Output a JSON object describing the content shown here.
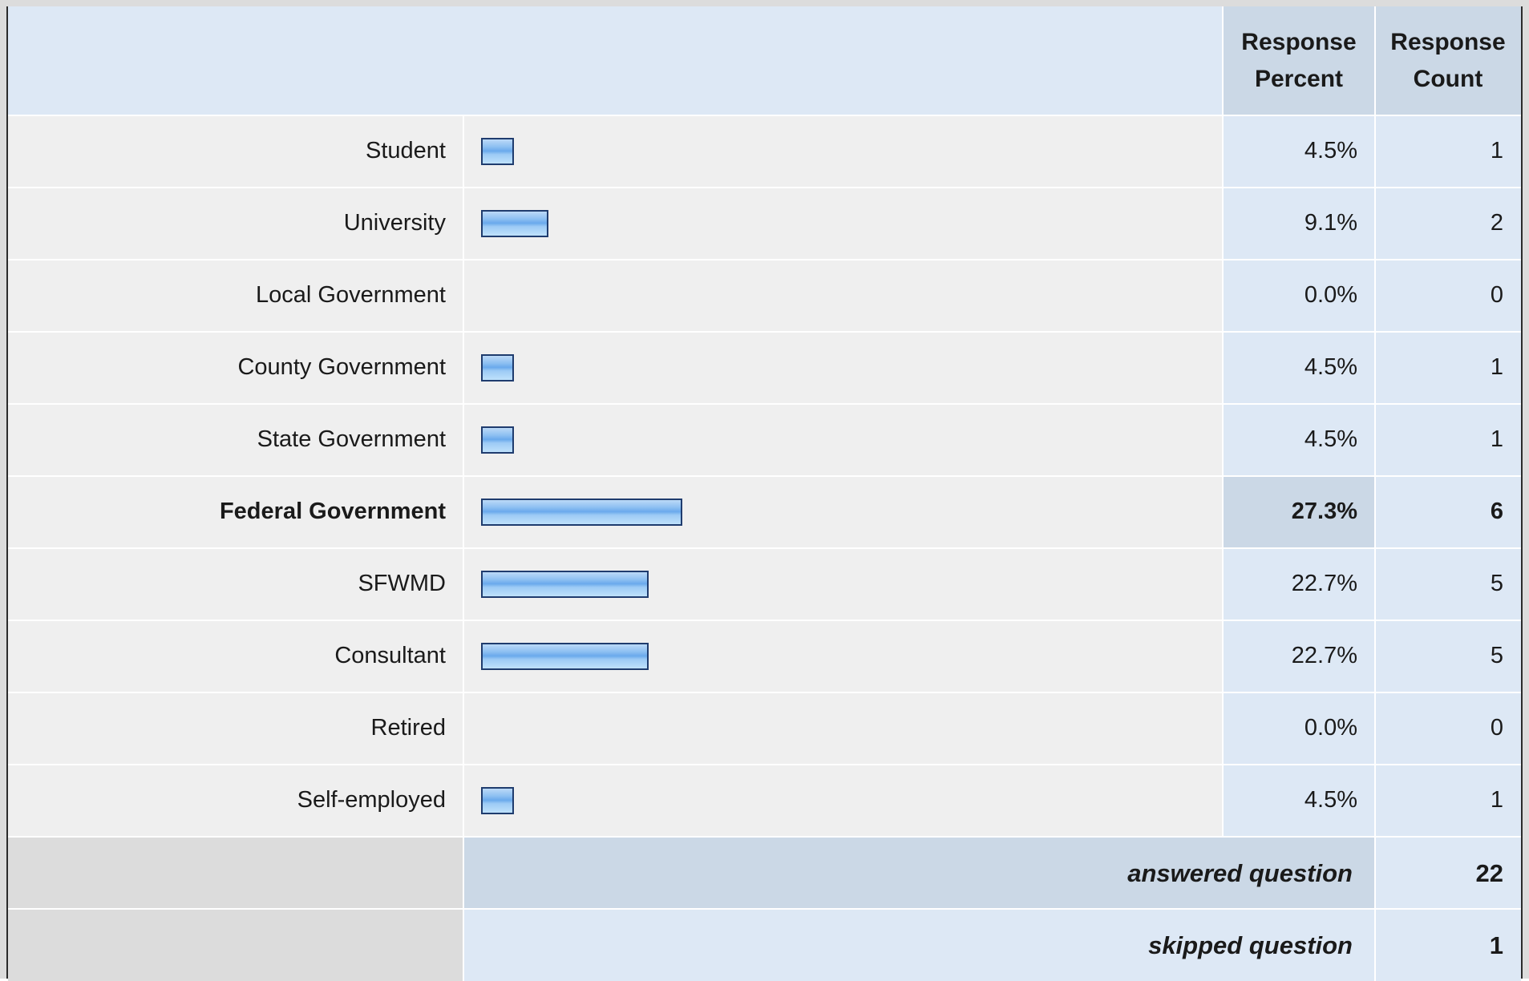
{
  "chart_data": {
    "type": "bar",
    "orientation": "horizontal",
    "columns": [
      "Response Percent",
      "Response Count"
    ],
    "categories": [
      "Student",
      "University",
      "Local Government",
      "County Government",
      "State Government",
      "Federal Government",
      "SFWMD",
      "Consultant",
      "Retired",
      "Self-employed"
    ],
    "percent_labels": [
      "4.5%",
      "9.1%",
      "0.0%",
      "4.5%",
      "4.5%",
      "27.3%",
      "22.7%",
      "22.7%",
      "0.0%",
      "4.5%"
    ],
    "values": [
      4.5,
      9.1,
      0.0,
      4.5,
      4.5,
      27.3,
      22.7,
      22.7,
      0.0,
      4.5
    ],
    "counts": [
      1,
      2,
      0,
      1,
      1,
      6,
      5,
      5,
      0,
      1
    ],
    "highlight_category": "Federal Government",
    "xlim": [
      0,
      100
    ],
    "bar_color": "#7db6f0",
    "bar_border_color": "#1f3c6e",
    "title": "",
    "xlabel": "",
    "ylabel": ""
  },
  "summary": {
    "answered_label": "answered question",
    "answered_count": "22",
    "skipped_label": "skipped question",
    "skipped_count": "1"
  }
}
